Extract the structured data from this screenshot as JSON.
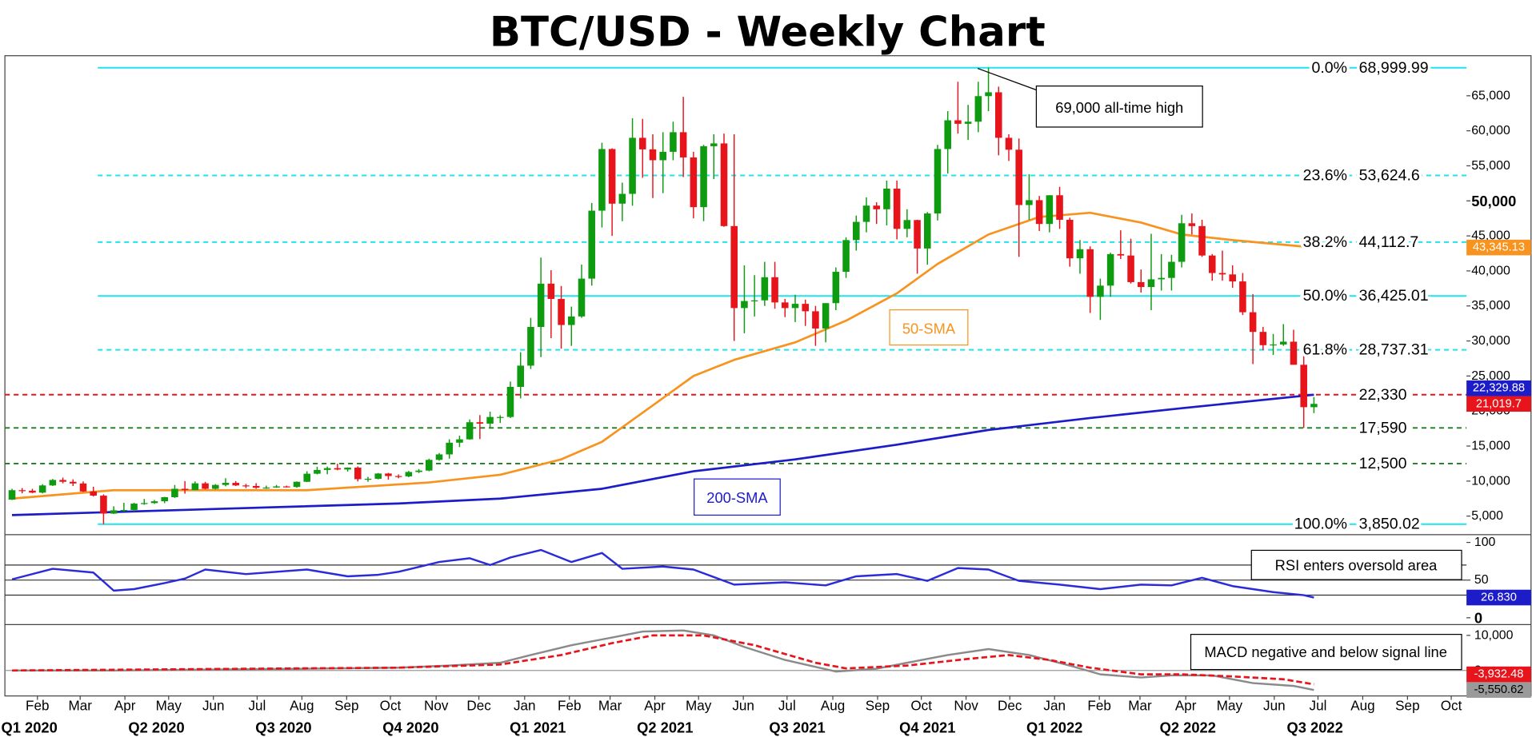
{
  "chart_data": [
    {
      "type": "candlestick",
      "title": "BTC/USD - Weekly Chart",
      "note": "69,000 all-time high",
      "up_color": "#0f9b0f",
      "down_color": "#e8141b",
      "xlim": [
        -0.7,
        143
      ],
      "ylim": [
        2630,
        70300
      ],
      "yticks": [
        {
          "value": 5000,
          "label": "5,000"
        },
        {
          "value": 10000,
          "label": "10,000"
        },
        {
          "value": 15000,
          "label": "15,000"
        },
        {
          "value": 20000,
          "label": "20,000"
        },
        {
          "value": 25000,
          "label": "25,000"
        },
        {
          "value": 30000,
          "label": "30,000"
        },
        {
          "value": 35000,
          "label": "35,000"
        },
        {
          "value": 40000,
          "label": "40,000"
        },
        {
          "value": 45000,
          "label": "45,000"
        },
        {
          "value": 50000,
          "label": "50,000"
        },
        {
          "value": 55000,
          "label": "55,000"
        },
        {
          "value": 60000,
          "label": "60,000"
        },
        {
          "value": 65000,
          "label": "65,000"
        }
      ],
      "open": [
        7350,
        8700,
        8630,
        8350,
        9380,
        10160,
        9900,
        9660,
        8520,
        7920,
        5360,
        5830,
        5880,
        6780,
        6860,
        7120,
        7700,
        8900,
        8720,
        9680,
        8900,
        9450,
        9750,
        9380,
        9300,
        9050,
        9080,
        9240,
        9160,
        9900,
        11050,
        11590,
        11850,
        11650,
        11920,
        10270,
        10330,
        11080,
        10720,
        10670,
        11300,
        11500,
        13030,
        13810,
        15480,
        15960,
        18400,
        18200,
        19150,
        19150,
        23450,
        26480,
        32000,
        38180,
        36000,
        32280,
        33500,
        38900,
        48600,
        57400,
        49600,
        51000,
        59000,
        57350,
        55800,
        57000,
        59800,
        56200,
        49100,
        57800,
        58200,
        46400,
        34700,
        35700,
        35800,
        39100,
        35500,
        34700,
        35300,
        34240,
        31780,
        35400,
        39870,
        44400,
        47000,
        49320,
        48800,
        51750,
        46000,
        47260,
        43200,
        48200,
        57400,
        61500,
        61000,
        61300,
        64950,
        65500,
        59000,
        57300,
        49400,
        50100,
        46700,
        50800,
        47300,
        41800,
        43100,
        36300,
        37900,
        42400,
        42200,
        38400,
        37700,
        38800,
        39000,
        41300,
        46800,
        46400,
        42200,
        39700,
        39500,
        38500,
        34100,
        31300,
        29400,
        29500,
        29900,
        26600,
        20550
      ],
      "high": [
        8900,
        9000,
        8900,
        9550,
        10300,
        10500,
        10250,
        9950,
        9190,
        8100,
        6400,
        6900,
        6900,
        7450,
        7300,
        7750,
        9450,
        10000,
        9950,
        9900,
        9570,
        10400,
        9990,
        9600,
        9700,
        9350,
        9450,
        9350,
        9950,
        11400,
        12050,
        12080,
        12480,
        11950,
        12100,
        10600,
        11150,
        11180,
        10950,
        11450,
        11720,
        13200,
        14000,
        15960,
        16480,
        18800,
        19420,
        19900,
        19400,
        24200,
        28400,
        33300,
        41900,
        40100,
        37850,
        34900,
        40900,
        49700,
        58300,
        57500,
        52600,
        61800,
        61700,
        59500,
        59800,
        61300,
        64850,
        57000,
        58000,
        59500,
        59600,
        59500,
        40800,
        39400,
        41300,
        41300,
        36000,
        36600,
        35900,
        35000,
        35400,
        40500,
        44800,
        47900,
        50500,
        49800,
        52900,
        52900,
        48800,
        47300,
        48400,
        58000,
        62800,
        67000,
        63700,
        67000,
        68999.99,
        66300,
        59500,
        58900,
        53800,
        50700,
        50800,
        52000,
        47600,
        44400,
        43500,
        38900,
        42600,
        45800,
        44600,
        40200,
        45300,
        42400,
        42300,
        48000,
        48200,
        47300,
        42400,
        42900,
        40800,
        39700,
        36700,
        32000,
        31000,
        32400,
        31600,
        28000,
        22000
      ],
      "low": [
        7300,
        8260,
        8280,
        8250,
        9300,
        9680,
        9300,
        8450,
        7800,
        3850.02,
        5300,
        5650,
        5680,
        6620,
        6750,
        6850,
        7600,
        8200,
        8700,
        8820,
        8800,
        9250,
        9300,
        9000,
        8900,
        8900,
        9050,
        9100,
        9050,
        9850,
        10950,
        10980,
        11550,
        11350,
        9950,
        9900,
        10250,
        10200,
        10400,
        10550,
        11150,
        11400,
        12900,
        13200,
        14850,
        15900,
        16000,
        17600,
        18300,
        19000,
        21800,
        26000,
        27700,
        30400,
        28900,
        29300,
        33300,
        37900,
        46200,
        45000,
        47100,
        49300,
        53300,
        50400,
        51100,
        55800,
        53400,
        47500,
        47100,
        53100,
        46300,
        30000,
        31100,
        33500,
        35000,
        34600,
        33400,
        32700,
        32150,
        29300,
        29800,
        34400,
        39000,
        42900,
        45500,
        46700,
        46500,
        44500,
        44800,
        39600,
        40900,
        47200,
        53900,
        59600,
        58700,
        59800,
        62800,
        56500,
        55700,
        42000,
        47300,
        45700,
        45500,
        46000,
        40600,
        39600,
        34000,
        33000,
        36300,
        41700,
        38200,
        36900,
        34400,
        37200,
        37200,
        40500,
        45200,
        42000,
        38600,
        38600,
        37600,
        33700,
        26700,
        28700,
        28000,
        29300,
        26600,
        17590,
        19700
      ],
      "close": [
        8700,
        8630,
        8350,
        9380,
        10160,
        9900,
        9660,
        8520,
        7920,
        5360,
        5830,
        5880,
        6780,
        6860,
        7120,
        7700,
        8900,
        8720,
        9680,
        8900,
        9450,
        9750,
        9380,
        9300,
        9050,
        9080,
        9240,
        9160,
        9900,
        11050,
        11590,
        11850,
        11650,
        11920,
        10270,
        10330,
        11080,
        10720,
        10670,
        11300,
        11500,
        13030,
        13810,
        15480,
        15960,
        18400,
        18200,
        19150,
        19150,
        23450,
        26480,
        32000,
        38180,
        36000,
        32280,
        33500,
        38900,
        48600,
        57400,
        49600,
        51000,
        59000,
        57350,
        55800,
        57000,
        59800,
        56200,
        49100,
        57800,
        58200,
        46400,
        34700,
        35700,
        35800,
        39100,
        35500,
        34700,
        35300,
        34240,
        31780,
        35400,
        39870,
        44400,
        47000,
        49320,
        48800,
        51750,
        46000,
        47260,
        43200,
        48200,
        57400,
        61500,
        61000,
        61300,
        64950,
        65500,
        59000,
        57300,
        49400,
        50100,
        46700,
        50800,
        47300,
        41800,
        43100,
        36300,
        37900,
        42400,
        42200,
        38400,
        37700,
        38800,
        39000,
        41300,
        46800,
        46400,
        42200,
        39700,
        39500,
        38500,
        34100,
        31300,
        29400,
        29500,
        29900,
        26600,
        20550,
        21019.7
      ],
      "series": [
        {
          "name": "50-SMA",
          "color": "#f7931e",
          "x": [
            0,
            10,
            29,
            41,
            48,
            54,
            58,
            63,
            67,
            71,
            77,
            82,
            87,
            91,
            96,
            101,
            106,
            111,
            115,
            120,
            128
          ],
          "values": [
            7500,
            8700,
            8700,
            9800,
            10900,
            13100,
            15600,
            20800,
            25000,
            27300,
            29800,
            32900,
            36800,
            41000,
            45200,
            47700,
            48300,
            46900,
            45200,
            44400,
            43345.13
          ]
        },
        {
          "name": "200-SMA",
          "color": "#1c1cc8",
          "x": [
            0,
            38,
            48,
            58,
            67,
            77,
            87,
            96,
            106,
            115,
            128
          ],
          "values": [
            5150,
            6800,
            7500,
            8900,
            11400,
            13100,
            15200,
            17300,
            19000,
            20400,
            22329.88
          ]
        }
      ],
      "fib_color": "#1fe3ef",
      "fib": [
        {
          "pct": "0.0%",
          "value": 68999.99,
          "label": "68,999.99",
          "style": "solid"
        },
        {
          "pct": "23.6%",
          "value": 53624.6,
          "label": "53,624.6",
          "style": "dashed"
        },
        {
          "pct": "38.2%",
          "value": 44112.7,
          "label": "44,112.7",
          "style": "dashed"
        },
        {
          "pct": "50.0%",
          "value": 36425.01,
          "label": "36,425.01",
          "style": "solid"
        },
        {
          "pct": "61.8%",
          "value": 28737.31,
          "label": "28,737.31",
          "style": "dashed"
        },
        {
          "pct": "100.0%",
          "value": 3850.02,
          "label": "3,850.02",
          "style": "solid"
        }
      ],
      "supports": [
        {
          "value": 22330,
          "label": "22,330",
          "color": "#e8141b"
        },
        {
          "value": 17590,
          "label": "17,590",
          "color": "#1f7a1f"
        },
        {
          "value": 12500,
          "label": "12,500",
          "color": "#1f7a1f"
        }
      ],
      "tags": [
        {
          "value": 43345.13,
          "label": "43,345.13",
          "color": "#f7931e"
        },
        {
          "value": 22329.88,
          "label": "22,329.88",
          "color": "#1c1cc8"
        },
        {
          "value": 21019.7,
          "label": "21,019.7",
          "color": "#e8141b"
        }
      ]
    },
    {
      "type": "line",
      "note": "RSI enters oversold area",
      "ylim": [
        -7.8,
        109
      ],
      "yticks": [
        100,
        50,
        0
      ],
      "levels": [
        70,
        50,
        30
      ],
      "series": [
        {
          "color": "#2b2bd9",
          "x": [
            0,
            4,
            8,
            10,
            12,
            15,
            17,
            19,
            23,
            29,
            33,
            36,
            38,
            42,
            45,
            47,
            49,
            52,
            55,
            58,
            60,
            64,
            67,
            71,
            76,
            80,
            83,
            87,
            90,
            93,
            96,
            99,
            103,
            107,
            111,
            114,
            117,
            120,
            124,
            127,
            128
          ],
          "values": [
            51,
            65,
            60,
            36,
            38,
            46,
            52,
            64,
            58,
            64,
            55,
            57,
            61,
            74,
            79,
            70,
            80,
            90,
            74,
            86,
            65,
            68,
            64,
            44,
            47,
            43,
            55,
            58,
            49,
            66,
            64,
            49,
            44,
            38,
            44,
            43,
            53,
            42,
            34,
            30,
            26.83
          ]
        }
      ],
      "tags": [
        {
          "value": 26.83,
          "label": "26.830",
          "color": "#1c1cc8"
        }
      ]
    },
    {
      "type": "line",
      "note": "MACD negative and below signal line",
      "ylim": [
        -6700,
        12800
      ],
      "yticks": [
        {
          "value": 10000,
          "label": "10,000"
        },
        0
      ],
      "levels": [
        0
      ],
      "series": [
        {
          "color": "#8a8a8a",
          "style": "solid",
          "x": [
            0,
            10,
            29,
            38,
            43,
            48,
            51,
            55,
            59,
            62,
            66,
            69,
            72,
            76,
            81,
            85,
            88,
            92,
            96,
            100,
            104,
            107,
            111,
            114,
            118,
            122,
            126,
            128
          ],
          "values": [
            0,
            0,
            500,
            800,
            1400,
            2200,
            4400,
            7200,
            9400,
            11100,
            11400,
            10000,
            6700,
            3000,
            -300,
            500,
            2200,
            4400,
            6100,
            4400,
            1400,
            -1100,
            -2000,
            -1400,
            -1400,
            -3600,
            -4400,
            -5550.62
          ]
        },
        {
          "color": "#e8141b",
          "style": "dashed",
          "x": [
            0,
            38,
            48,
            54,
            59,
            63,
            68,
            73,
            79,
            82,
            88,
            94,
            98,
            102,
            106,
            111,
            115,
            120,
            125,
            128
          ],
          "values": [
            0,
            800,
            1700,
            4400,
            7800,
            10000,
            10000,
            7200,
            2200,
            600,
            1400,
            3300,
            4400,
            3000,
            800,
            -1100,
            -1100,
            -1700,
            -2500,
            -3932.48
          ]
        }
      ],
      "tags": [
        {
          "value": -3932.48,
          "label": "-3,932.48",
          "color": "#e8141b"
        },
        {
          "value": -5550.62,
          "label": "-5,550.62",
          "color": "#9a9a9a",
          "text_color": "#000000"
        }
      ],
      "xticks": [
        {
          "value": 2.5,
          "label": "Feb"
        },
        {
          "value": 6.7,
          "label": "Mar"
        },
        {
          "value": 11.1,
          "label": "Apr"
        },
        {
          "value": 15.4,
          "label": "May"
        },
        {
          "value": 19.8,
          "label": "Jun"
        },
        {
          "value": 24.1,
          "label": "Jul"
        },
        {
          "value": 28.5,
          "label": "Aug"
        },
        {
          "value": 32.9,
          "label": "Sep"
        },
        {
          "value": 37.2,
          "label": "Oct"
        },
        {
          "value": 41.7,
          "label": "Nov"
        },
        {
          "value": 45.9,
          "label": "Dec"
        },
        {
          "value": 50.4,
          "label": "Jan"
        },
        {
          "value": 54.8,
          "label": "Feb"
        },
        {
          "value": 58.8,
          "label": "Mar"
        },
        {
          "value": 63.2,
          "label": "Apr"
        },
        {
          "value": 67.5,
          "label": "May"
        },
        {
          "value": 71.9,
          "label": "Jun"
        },
        {
          "value": 76.2,
          "label": "Jul"
        },
        {
          "value": 80.7,
          "label": "Aug"
        },
        {
          "value": 85.1,
          "label": "Sep"
        },
        {
          "value": 89.4,
          "label": "Oct"
        },
        {
          "value": 93.8,
          "label": "Nov"
        },
        {
          "value": 98.1,
          "label": "Dec"
        },
        {
          "value": 102.5,
          "label": "Jan"
        },
        {
          "value": 106.9,
          "label": "Feb"
        },
        {
          "value": 110.9,
          "label": "Mar"
        },
        {
          "value": 115.4,
          "label": "Apr"
        },
        {
          "value": 119.7,
          "label": "May"
        },
        {
          "value": 124.1,
          "label": "Jun"
        },
        {
          "value": 128.4,
          "label": "Jul"
        },
        {
          "value": 132.8,
          "label": "Aug"
        },
        {
          "value": 137.2,
          "label": "Sep"
        },
        {
          "value": 141.5,
          "label": "Oct"
        }
      ],
      "quarters": [
        {
          "value": 1.7,
          "label": "Q1 2020"
        },
        {
          "value": 14.2,
          "label": "Q2 2020"
        },
        {
          "value": 26.7,
          "label": "Q3 2020"
        },
        {
          "value": 39.2,
          "label": "Q4 2020"
        },
        {
          "value": 51.7,
          "label": "Q1 2021"
        },
        {
          "value": 64.2,
          "label": "Q2 2021"
        },
        {
          "value": 77.2,
          "label": "Q3 2021"
        },
        {
          "value": 90,
          "label": "Q4 2021"
        },
        {
          "value": 102.5,
          "label": "Q1 2022"
        },
        {
          "value": 115.6,
          "label": "Q2 2022"
        },
        {
          "value": 128.1,
          "label": "Q3 2022"
        }
      ]
    }
  ]
}
